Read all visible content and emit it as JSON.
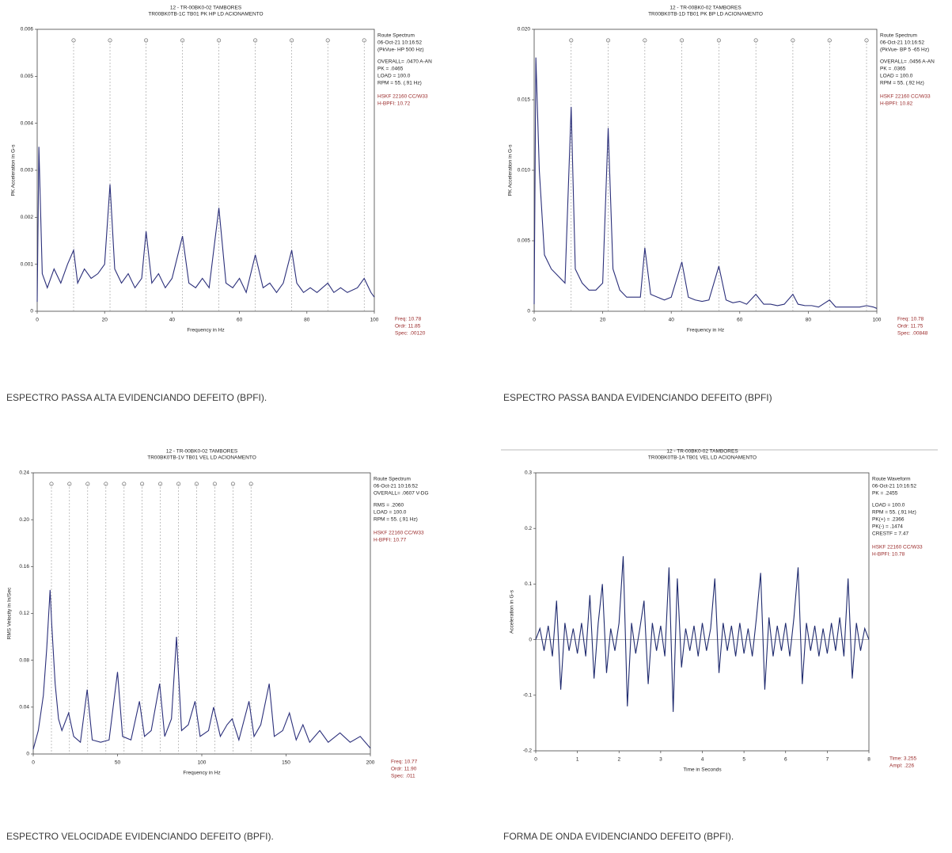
{
  "chart_data": [
    {
      "type": "line",
      "title": "12 - TR-00BK0-02 TAMBORES",
      "subtitle": "TR00BK0TB-1C   TB01 PK HP LD ACIONAMENTO",
      "xlabel": "Frequency in Hz",
      "ylabel": "PK Acceleration in G-s",
      "xlim": [
        0,
        100
      ],
      "ylim": [
        0,
        0.006
      ],
      "xticks": [
        0,
        20,
        40,
        60,
        80,
        100
      ],
      "yticks": [
        0,
        0.001,
        0.002,
        0.003,
        0.004,
        0.005,
        0.006
      ],
      "x": [
        0,
        0.5,
        1.5,
        3,
        5,
        7,
        9,
        10.8,
        12,
        14,
        16,
        18,
        20,
        21.6,
        23,
        25,
        27,
        29,
        31,
        32.3,
        34,
        36,
        38,
        40,
        43.1,
        45,
        47,
        49,
        51,
        53.9,
        56,
        58,
        60,
        62,
        64.7,
        67,
        69,
        71,
        73,
        75.5,
        77,
        79,
        81,
        83,
        86.2,
        88,
        90,
        92,
        95,
        97,
        99,
        100
      ],
      "series": [
        {
          "color": "#2b2f7a",
          "values": [
            0.0002,
            0.0035,
            0.0008,
            0.0005,
            0.0009,
            0.0006,
            0.001,
            0.0013,
            0.0006,
            0.0009,
            0.0007,
            0.0008,
            0.001,
            0.0027,
            0.0009,
            0.0006,
            0.0008,
            0.0005,
            0.0007,
            0.0017,
            0.0006,
            0.0008,
            0.0005,
            0.0007,
            0.0016,
            0.0006,
            0.0005,
            0.0007,
            0.0005,
            0.0022,
            0.0006,
            0.0005,
            0.0007,
            0.0004,
            0.0012,
            0.0005,
            0.0006,
            0.0004,
            0.0006,
            0.0013,
            0.0006,
            0.0004,
            0.0005,
            0.0004,
            0.0006,
            0.0004,
            0.0005,
            0.0004,
            0.0005,
            0.0007,
            0.0004,
            0.0003
          ]
        }
      ],
      "cursors": [
        10.8,
        21.6,
        32.3,
        43.1,
        53.9,
        64.7,
        75.5,
        86.2,
        97
      ],
      "info": [
        "Route Spectrum",
        "06-Oct-21 10:16:52",
        "(PkVue- HP 500 Hz)",
        "OVERALL= .0470 A-AN",
        "PK = .0465",
        "LOAD = 100.0",
        "RPM = 55. (.91 Hz)"
      ],
      "bearing": [
        "HSKF 22160 CC/W33",
        "H-BPFI: 10.72"
      ],
      "readout": [
        "Freq: 10.78",
        "Ordr: 11.85",
        "Spec: .00120"
      ],
      "caption": "ESPECTRO PASSA ALTA EVIDENCIANDO DEFEITO (BPFI)."
    },
    {
      "type": "line",
      "title": "12 - TR-00BK0-02 TAMBORES",
      "subtitle": "TR00BK0TB-1D   TB01 PK BP LD ACIONAMENTO",
      "xlabel": "Frequency in Hz",
      "ylabel": "PK Acceleration in G-s",
      "xlim": [
        0,
        100
      ],
      "ylim": [
        0,
        0.02
      ],
      "xticks": [
        0,
        20,
        40,
        60,
        80,
        100
      ],
      "yticks": [
        0,
        0.005,
        {
          "value": 0.01,
          "label": "0.010"
        },
        0.015,
        {
          "value": 0.02,
          "label": "0.020"
        }
      ],
      "x": [
        0,
        0.5,
        1.5,
        3,
        5,
        7,
        9,
        10.8,
        12,
        14,
        16,
        18,
        20,
        21.6,
        23,
        25,
        27,
        29,
        31,
        32.3,
        34,
        36,
        38,
        40,
        43.1,
        45,
        47,
        49,
        51,
        53.9,
        56,
        58,
        60,
        62,
        64.7,
        67,
        69,
        71,
        73,
        75.5,
        77,
        79,
        81,
        83,
        86.2,
        88,
        90,
        92,
        95,
        97,
        99,
        100
      ],
      "series": [
        {
          "color": "#2b2f7a",
          "values": [
            0.0005,
            0.018,
            0.01,
            0.004,
            0.003,
            0.0025,
            0.002,
            0.0145,
            0.003,
            0.002,
            0.0015,
            0.0015,
            0.002,
            0.013,
            0.003,
            0.0015,
            0.001,
            0.001,
            0.001,
            0.0045,
            0.0012,
            0.001,
            0.0008,
            0.001,
            0.0035,
            0.001,
            0.0008,
            0.0007,
            0.0008,
            0.0032,
            0.0008,
            0.0006,
            0.0007,
            0.0005,
            0.0012,
            0.0005,
            0.0005,
            0.0004,
            0.0005,
            0.0012,
            0.0005,
            0.0004,
            0.0004,
            0.0003,
            0.0008,
            0.0003,
            0.0003,
            0.0003,
            0.0003,
            0.0004,
            0.0003,
            0.0002
          ]
        }
      ],
      "cursors": [
        10.8,
        21.6,
        32.3,
        43.1,
        53.9,
        64.7,
        75.5,
        86.2,
        97
      ],
      "info": [
        "Route Spectrum",
        "06-Oct-21 10:16:52",
        "(PkVue- BP 5 -65 Hz)",
        "OVERALL= .0456 A-AN",
        "PK = .0365",
        "LOAD = 100.0",
        "RPM = 55. (.92 Hz)"
      ],
      "bearing": [
        "HSKF 22160 CC/W33",
        "H-BPFI: 10.82"
      ],
      "readout": [
        "Freq: 10.78",
        "Ordr: 11.75",
        "Spec: .00848"
      ],
      "caption": "ESPECTRO PASSA BANDA EVIDENCIANDO DEFEITO (BPFI)"
    },
    {
      "type": "line",
      "title": "12 - TR-00BK0-02 TAMBORES",
      "subtitle": "TR00BK0TB-1V   TB01 VEL LD ACIONAMENTO",
      "xlabel": "Frequency in Hz",
      "ylabel": "RMS Velocity in In/Sec",
      "xlim": [
        0,
        200
      ],
      "ylim": [
        0,
        0.24
      ],
      "xticks": [
        0,
        50,
        100,
        150,
        200
      ],
      "yticks": [
        0,
        0.04,
        0.08,
        0.12,
        0.16,
        {
          "value": 0.2,
          "label": "0.20"
        },
        0.24
      ],
      "x": [
        0,
        3,
        6,
        8,
        10,
        11,
        13,
        15,
        17,
        21,
        24,
        28,
        32,
        35,
        40,
        45,
        50,
        53,
        58,
        63,
        66,
        70,
        75,
        78,
        82,
        85,
        88,
        92,
        96,
        99,
        104,
        107,
        111,
        115,
        118,
        122,
        128,
        131,
        135,
        140,
        143,
        148,
        152,
        156,
        160,
        164,
        170,
        175,
        182,
        188,
        194,
        200
      ],
      "series": [
        {
          "color": "#2b2f7a",
          "values": [
            0.004,
            0.02,
            0.05,
            0.09,
            0.14,
            0.11,
            0.06,
            0.03,
            0.02,
            0.035,
            0.015,
            0.01,
            0.055,
            0.012,
            0.01,
            0.012,
            0.07,
            0.015,
            0.012,
            0.045,
            0.015,
            0.02,
            0.06,
            0.015,
            0.03,
            0.1,
            0.02,
            0.025,
            0.045,
            0.015,
            0.02,
            0.04,
            0.015,
            0.025,
            0.03,
            0.012,
            0.045,
            0.015,
            0.025,
            0.06,
            0.015,
            0.02,
            0.035,
            0.012,
            0.025,
            0.01,
            0.02,
            0.01,
            0.018,
            0.01,
            0.015,
            0.005
          ]
        }
      ],
      "cursors": [
        10.8,
        21.5,
        32.3,
        43.1,
        53.9,
        64.6,
        75.4,
        86.2,
        96.9,
        107.7,
        118.5,
        129.2
      ],
      "info": [
        "Route Spectrum",
        "06-Oct-21 10:16:52",
        "OVERALL= .0607 V-DG",
        "RMS = .2060",
        "LOAD = 100.0",
        "RPM = 55. (.91 Hz)"
      ],
      "bearing": [
        "HSKF 22160 CC/W33",
        "H-BPFI: 10.77"
      ],
      "readout": [
        "Freq: 10.77",
        "Ordr: 11.90",
        "Spec: .011"
      ],
      "caption": "ESPECTRO VELOCIDADE EVIDENCIANDO DEFEITO (BPFI)."
    },
    {
      "type": "line",
      "title": "12 - TR-00BK0-02 TAMBORES",
      "subtitle": "TR00BK0TB-1A   TB01 VEL LD ACIONAMENTO",
      "xlabel": "Time in Seconds",
      "ylabel": "Acceleration in G-s",
      "xlim": [
        0,
        8
      ],
      "ylim": [
        -0.2,
        0.3
      ],
      "xticks": [
        0,
        1,
        2,
        3,
        4,
        5,
        6,
        7,
        8
      ],
      "yticks": [
        -0.2,
        -0.1,
        0,
        0.1,
        0.2,
        0.3
      ],
      "x": [
        0,
        0.1,
        0.2,
        0.3,
        0.4,
        0.5,
        0.6,
        0.7,
        0.8,
        0.9,
        1,
        1.1,
        1.2,
        1.3,
        1.4,
        1.5,
        1.6,
        1.7,
        1.8,
        1.9,
        2,
        2.1,
        2.2,
        2.3,
        2.4,
        2.5,
        2.6,
        2.7,
        2.8,
        2.9,
        3,
        3.1,
        3.2,
        3.3,
        3.4,
        3.5,
        3.6,
        3.7,
        3.8,
        3.9,
        4,
        4.1,
        4.2,
        4.3,
        4.4,
        4.5,
        4.6,
        4.7,
        4.8,
        4.9,
        5,
        5.1,
        5.2,
        5.3,
        5.4,
        5.5,
        5.6,
        5.7,
        5.8,
        5.9,
        6,
        6.1,
        6.2,
        6.3,
        6.4,
        6.5,
        6.6,
        6.7,
        6.8,
        6.9,
        7,
        7.1,
        7.2,
        7.3,
        7.4,
        7.5,
        7.6,
        7.7,
        7.8,
        7.9,
        8
      ],
      "series": [
        {
          "color": "#1f2a6e",
          "values": [
            0,
            0.02,
            -0.02,
            0.025,
            -0.03,
            0.07,
            -0.09,
            0.03,
            -0.02,
            0.02,
            -0.025,
            0.03,
            -0.03,
            0.08,
            -0.07,
            0.03,
            0.1,
            -0.06,
            0.02,
            -0.02,
            0.03,
            0.15,
            -0.12,
            0.03,
            -0.025,
            0.02,
            0.07,
            -0.08,
            0.03,
            -0.02,
            0.025,
            -0.03,
            0.13,
            -0.13,
            0.11,
            -0.05,
            0.02,
            -0.02,
            0.025,
            -0.03,
            0.03,
            -0.02,
            0.02,
            0.11,
            -0.06,
            0.03,
            -0.02,
            0.025,
            -0.03,
            0.03,
            -0.025,
            0.02,
            -0.03,
            0.04,
            0.12,
            -0.09,
            0.04,
            -0.03,
            0.025,
            -0.02,
            0.03,
            -0.03,
            0.04,
            0.13,
            -0.08,
            0.03,
            -0.02,
            0.025,
            -0.03,
            0.02,
            -0.025,
            0.03,
            -0.02,
            0.04,
            -0.03,
            0.11,
            -0.07,
            0.03,
            -0.02,
            0.02,
            0
          ]
        }
      ],
      "info": [
        "Route Waveform",
        "06-Oct-21 10:16:52",
        "PK = .2455",
        "LOAD = 100.0",
        "RPM = 55. (.91 Hz)",
        "PK(+) = .2366",
        "PK(-) = .1474",
        "CRESTF = 7.47"
      ],
      "bearing": [
        "HSKF 22160 CC/W33",
        "H-BPFI: 10.78"
      ],
      "readout": [
        "Time: 3.255",
        "Ampl: .226"
      ],
      "caption": "FORMA DE ONDA EVIDENCIANDO DEFEITO (BPFI)."
    }
  ]
}
